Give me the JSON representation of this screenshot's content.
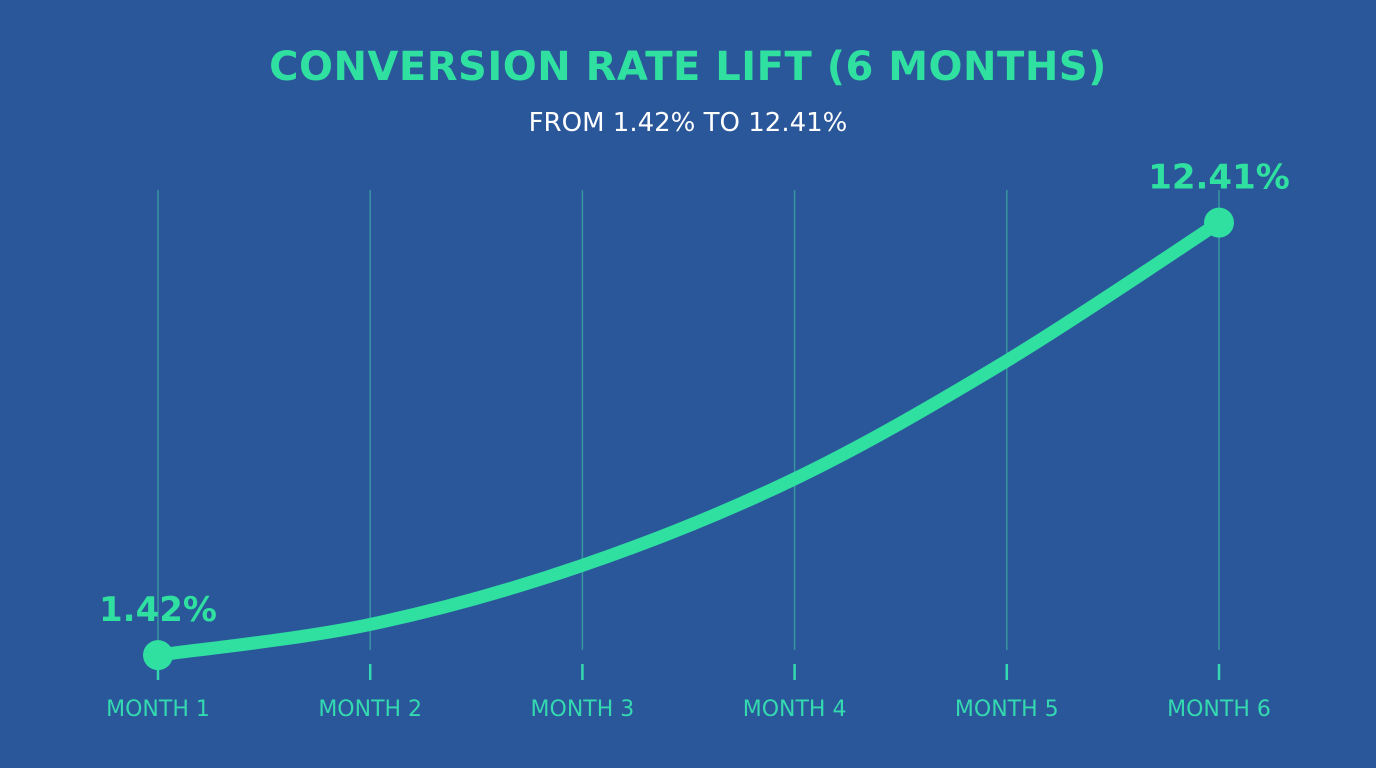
{
  "chart_data": {
    "type": "line",
    "title": "CONVERSION RATE LIFT (6 MONTHS)",
    "subtitle": "FROM 1.42% TO 12.41%",
    "categories": [
      "MONTH 1",
      "MONTH 2",
      "MONTH 3",
      "MONTH 4",
      "MONTH 5",
      "MONTH 6"
    ],
    "series": [
      {
        "values": [
          1.42,
          2.2,
          3.7,
          5.9,
          8.9,
          12.41
        ]
      }
    ],
    "data_labels": [
      {
        "index": 0,
        "text": "1.42%"
      },
      {
        "index": 5,
        "text": "12.41%"
      }
    ],
    "ylim": [
      0,
      14.4
    ],
    "grid": "vertical",
    "colors": {
      "background": "#2a569a",
      "line": "#2fe0a0",
      "grid": "#3aa6a0",
      "title": "#2fe0a0",
      "subtitle": "#ffffff",
      "tick_label": "#34d9b0"
    }
  }
}
